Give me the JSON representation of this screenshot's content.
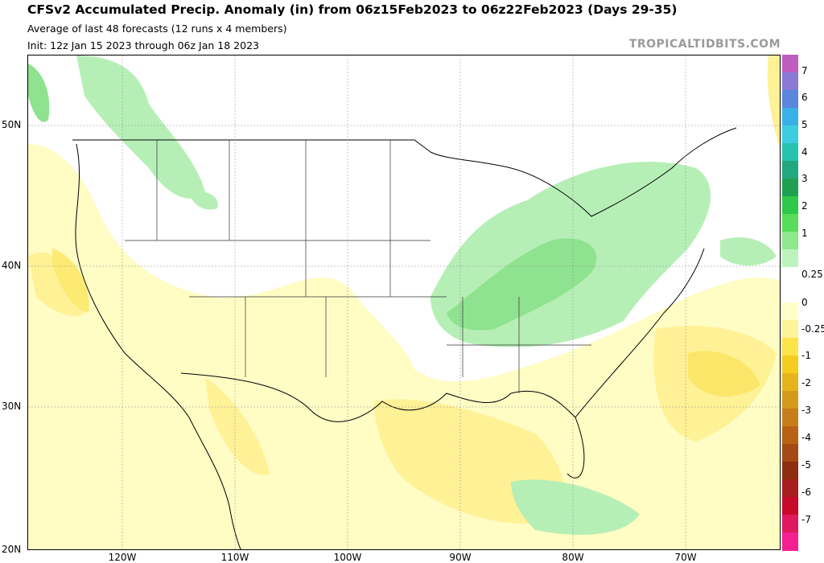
{
  "header": {
    "title": "CFSv2 Accumulated Precip. Anomaly (in) from 06z15Feb2023 to 06z22Feb2023 (Days 29-35)",
    "subtitle": "Average of last 48 forecasts (12 runs x 4 members)",
    "init": "Init: 12z Jan 15 2023 through 06z Jan 18 2023",
    "brand": "TROPICALTIDBITS.COM"
  },
  "map": {
    "lat_labels": [
      "50N",
      "40N",
      "30N",
      "20N"
    ],
    "lon_labels": [
      "120W",
      "110W",
      "100W",
      "90W",
      "80W",
      "70W"
    ]
  },
  "colorbar": {
    "labels": [
      "7",
      "6",
      "5",
      "4",
      "3",
      "2",
      "1",
      "0.25",
      "0",
      "-0.25",
      "-1",
      "-2",
      "-3",
      "-4",
      "-5",
      "-6",
      "-7"
    ],
    "colors": [
      "#c05cc0",
      "#8a7ad6",
      "#5a86dc",
      "#3ab0e8",
      "#3ccde0",
      "#26c4b0",
      "#22a880",
      "#1ea050",
      "#2ec84a",
      "#58dd58",
      "#8ee88e",
      "#bdf3bd",
      "#ffffff",
      "#ffffff",
      "#ffffc8",
      "#fff39a",
      "#ffe34a",
      "#f6cc1e",
      "#e6b41a",
      "#d69a1a",
      "#c87e18",
      "#b86214",
      "#a44a14",
      "#8e2e10",
      "#a81e1e",
      "#c80a2a",
      "#e0185e",
      "#f52090"
    ]
  }
}
